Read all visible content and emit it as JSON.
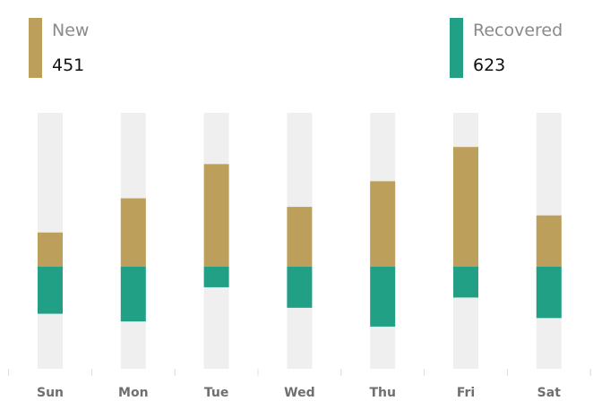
{
  "legend": {
    "new": {
      "label": "New",
      "value": "451",
      "color": "#BC9F5A"
    },
    "recovered": {
      "label": "Recovered",
      "value": "623",
      "color": "#22A085"
    }
  },
  "colors": {
    "track": "#EFEFEF",
    "axis": "#dcdcdc",
    "tick_label": "#6f6f6f"
  },
  "chart_data": {
    "type": "bar",
    "stacking": "diverging from a common baseline",
    "categories": [
      "Sun",
      "Mon",
      "Tue",
      "Wed",
      "Thu",
      "Fri",
      "Sat"
    ],
    "series": [
      {
        "name": "New",
        "color": "#BC9F5A",
        "values": [
          40,
          80,
          120,
          70,
          100,
          140,
          60
        ]
      },
      {
        "name": "Recovered",
        "color": "#22A085",
        "values": [
          -55,
          -64,
          -24,
          -48,
          -70,
          -36,
          -60
        ]
      }
    ],
    "ylim": [
      -120,
      180
    ],
    "grid": false
  }
}
